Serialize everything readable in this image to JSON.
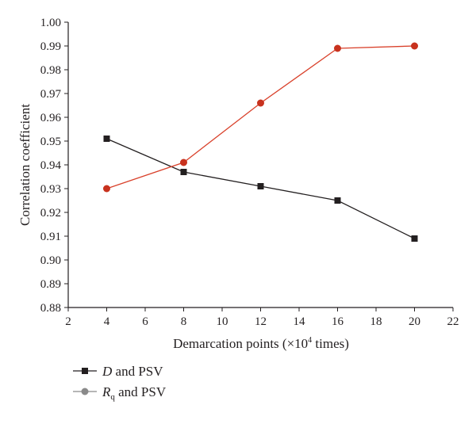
{
  "chart_data": {
    "type": "line",
    "xlabel_prefix": "Demarcation points (×10",
    "xlabel_sup": "4",
    "xlabel_suffix": " times)",
    "ylabel": "Correlation coefficient",
    "xlim": [
      2,
      22
    ],
    "ylim": [
      0.88,
      1.0
    ],
    "x_ticks": [
      "2",
      "4",
      "6",
      "8",
      "10",
      "12",
      "14",
      "16",
      "18",
      "20",
      "22"
    ],
    "y_ticks": [
      "0.88",
      "0.89",
      "0.90",
      "0.91",
      "0.92",
      "0.93",
      "0.94",
      "0.95",
      "0.96",
      "0.97",
      "0.98",
      "0.99",
      "1.00"
    ],
    "grid": false,
    "legend_position": "bottom-left",
    "series": [
      {
        "legend_main": "D",
        "legend_sub": "",
        "legend_rest": " and PSV",
        "marker": "square",
        "line_color": "#231f20",
        "marker_color": "#231f20",
        "legend_marker_color": "#231f20",
        "x": [
          4,
          8,
          12,
          16,
          20
        ],
        "y": [
          0.951,
          0.937,
          0.931,
          0.925,
          0.909
        ]
      },
      {
        "legend_main": "R",
        "legend_sub": "q",
        "legend_rest": " and PSV",
        "marker": "circle",
        "line_color": "#d9412b",
        "marker_color": "#c8321e",
        "legend_marker_color": "#8a8a8a",
        "x": [
          4,
          8,
          12,
          16,
          20
        ],
        "y": [
          0.93,
          0.941,
          0.966,
          0.989,
          0.99
        ]
      }
    ]
  }
}
